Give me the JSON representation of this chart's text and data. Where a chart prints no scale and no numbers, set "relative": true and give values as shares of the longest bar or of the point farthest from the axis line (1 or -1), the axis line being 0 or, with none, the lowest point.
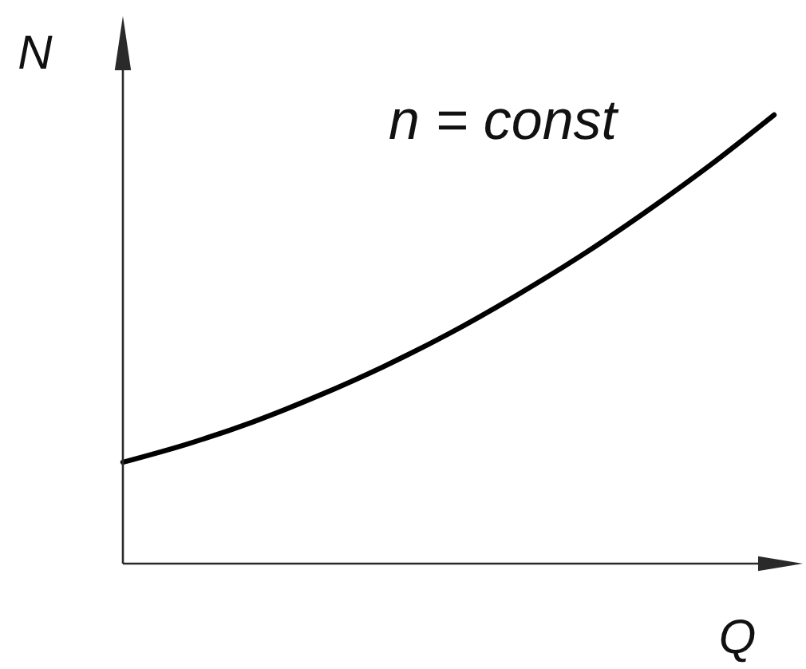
{
  "chart_data": {
    "type": "line",
    "xlabel": "Q",
    "ylabel": "N",
    "annotations": [
      "n = const"
    ],
    "relative": true,
    "categories": [
      null,
      null,
      null,
      null,
      null,
      null,
      null,
      null,
      null,
      null,
      null
    ],
    "series": [
      {
        "color": "#000000",
        "values": [
          0.226,
          0.267,
          0.316,
          0.374,
          0.439,
          0.512,
          0.594,
          0.683,
          0.781,
          0.886,
          1
        ]
      }
    ]
  }
}
